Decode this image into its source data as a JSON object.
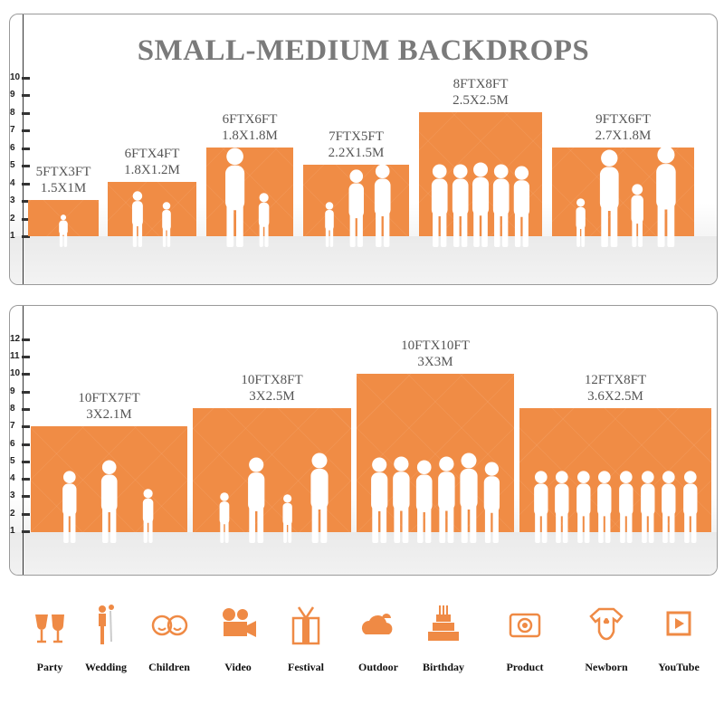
{
  "title": "SMALL-MEDIUM BACKDROPS",
  "accent_color": "#f08c45",
  "ruler_top": {
    "ticks": [
      "1",
      "2",
      "3",
      "4",
      "5",
      "6",
      "7",
      "8",
      "9",
      "10"
    ]
  },
  "ruler_bottom": {
    "ticks": [
      "1",
      "2",
      "3",
      "4",
      "5",
      "6",
      "7",
      "8",
      "9",
      "10",
      "11",
      "12"
    ]
  },
  "backdrops_top": [
    {
      "ft": "5FTX3FT",
      "m": "1.5X1M"
    },
    {
      "ft": "6FTX4FT",
      "m": "1.8X1.2M"
    },
    {
      "ft": "6FTX6FT",
      "m": "1.8X1.8M"
    },
    {
      "ft": "7FTX5FT",
      "m": "2.2X1.5M"
    },
    {
      "ft": "8FTX8FT",
      "m": "2.5X2.5M"
    },
    {
      "ft": "9FTX6FT",
      "m": "2.7X1.8M"
    }
  ],
  "backdrops_bottom": [
    {
      "ft": "10FTX7FT",
      "m": "3X2.1M"
    },
    {
      "ft": "10FTX8FT",
      "m": "3X2.5M"
    },
    {
      "ft": "10FTX10FT",
      "m": "3X3M"
    },
    {
      "ft": "12FTX8FT",
      "m": "3.6X2.5M"
    }
  ],
  "uses": [
    {
      "label": "Party",
      "icon": "wine-glasses-icon"
    },
    {
      "label": "Wedding",
      "icon": "wedding-couple-icon"
    },
    {
      "label": "Children",
      "icon": "children-faces-icon"
    },
    {
      "label": "Video",
      "icon": "film-camera-icon"
    },
    {
      "label": "Festival",
      "icon": "gift-box-icon"
    },
    {
      "label": "Outdoor",
      "icon": "cloud-icon"
    },
    {
      "label": "Birthday",
      "icon": "birthday-cake-icon"
    },
    {
      "label": "Product",
      "icon": "camera-icon"
    },
    {
      "label": "Newborn",
      "icon": "baby-onesie-icon"
    },
    {
      "label": "YouTube",
      "icon": "play-button-icon"
    }
  ]
}
